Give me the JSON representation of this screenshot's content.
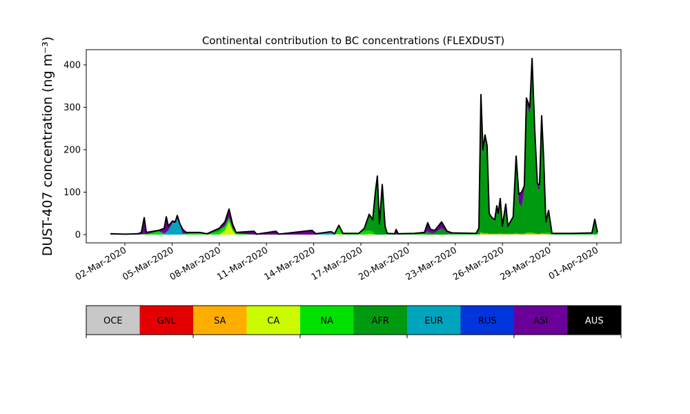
{
  "chart_data": {
    "type": "area",
    "stacked": true,
    "title": "Continental contribution to BC concentrations (FLEXDUST)",
    "ylabel": "DUST-407 concentration (ng m⁻³)",
    "xlabel": "",
    "ylim": [
      -20,
      435
    ],
    "yticks": [
      0,
      100,
      200,
      300,
      400
    ],
    "x_unit": "day of March 2020",
    "xlim": [
      0.5,
      33.5
    ],
    "xticks": [
      {
        "day": 2,
        "label": "02-Mar-2020"
      },
      {
        "day": 5,
        "label": "05-Mar-2020"
      },
      {
        "day": 8,
        "label": "08-Mar-2020"
      },
      {
        "day": 11,
        "label": "11-Mar-2020"
      },
      {
        "day": 14,
        "label": "14-Mar-2020"
      },
      {
        "day": 17,
        "label": "17-Mar-2020"
      },
      {
        "day": 20,
        "label": "20-Mar-2020"
      },
      {
        "day": 23,
        "label": "23-Mar-2020"
      },
      {
        "day": 26,
        "label": "26-Mar-2020"
      },
      {
        "day": 29,
        "label": "29-Mar-2020"
      },
      {
        "day": 32,
        "label": "01-Apr-2020"
      }
    ],
    "legend": [
      {
        "name": "OCE",
        "color": "#c8c8c8",
        "text_color": "#000000"
      },
      {
        "name": "GNL",
        "color": "#e50000",
        "text_color": "#000000"
      },
      {
        "name": "SA",
        "color": "#ffae00",
        "text_color": "#000000"
      },
      {
        "name": "CA",
        "color": "#ccfa00",
        "text_color": "#000000"
      },
      {
        "name": "NA",
        "color": "#00e100",
        "text_color": "#000000"
      },
      {
        "name": "AFR",
        "color": "#009a10",
        "text_color": "#000000"
      },
      {
        "name": "EUR",
        "color": "#00a5bd",
        "text_color": "#000000"
      },
      {
        "name": "RUS",
        "color": "#0035dd",
        "text_color": "#000000"
      },
      {
        "name": "ASI",
        "color": "#6a0098",
        "text_color": "#000000"
      },
      {
        "name": "AUS",
        "color": "#000000",
        "text_color": "#ffffff"
      }
    ],
    "legend_placement": "bottom colorbar",
    "columns": [
      "day",
      "SA",
      "CA",
      "NA",
      "AFR",
      "EUR",
      "RUS",
      "ASI"
    ],
    "points": [
      [
        1.08,
        0,
        0,
        0,
        0,
        0,
        1,
        1
      ],
      [
        2.0,
        0,
        0,
        0,
        0,
        0,
        0,
        1
      ],
      [
        2.83,
        0,
        0,
        0,
        0,
        0,
        0,
        2
      ],
      [
        3.05,
        0,
        0,
        1,
        0,
        0,
        0,
        4
      ],
      [
        3.23,
        0,
        0,
        2,
        0,
        0,
        0,
        38
      ],
      [
        3.36,
        0,
        0,
        1,
        0,
        0,
        0,
        4
      ],
      [
        4.15,
        0,
        0,
        8,
        0,
        0,
        0,
        2
      ],
      [
        4.5,
        0,
        0,
        0,
        0,
        3,
        0,
        12
      ],
      [
        4.63,
        0,
        0,
        0,
        0,
        6,
        0,
        36
      ],
      [
        4.76,
        0,
        0,
        0,
        0,
        10,
        0,
        10
      ],
      [
        5.03,
        0,
        0,
        0,
        0,
        28,
        0,
        4
      ],
      [
        5.2,
        0,
        0,
        0,
        0,
        27,
        0,
        3
      ],
      [
        5.33,
        0,
        0,
        0,
        0,
        42,
        0,
        3
      ],
      [
        5.5,
        0,
        0,
        0,
        0,
        22,
        0,
        3
      ],
      [
        5.68,
        0,
        0,
        0,
        0,
        2,
        0,
        10
      ],
      [
        5.9,
        0,
        0,
        2,
        0,
        0,
        0,
        3
      ],
      [
        6.78,
        0,
        0,
        3,
        0,
        2,
        0,
        0
      ],
      [
        7.22,
        0,
        0,
        0,
        0,
        0,
        0,
        2
      ],
      [
        8.0,
        0,
        0,
        8,
        5,
        0,
        0,
        2
      ],
      [
        8.36,
        0,
        10,
        10,
        0,
        0,
        0,
        10
      ],
      [
        8.62,
        0,
        30,
        10,
        0,
        0,
        0,
        20
      ],
      [
        8.84,
        0,
        10,
        5,
        0,
        0,
        0,
        10
      ],
      [
        9.06,
        0,
        0,
        3,
        0,
        0,
        0,
        2
      ],
      [
        10.2,
        0,
        0,
        0,
        0,
        0,
        0,
        8
      ],
      [
        10.38,
        0,
        0,
        0,
        0,
        0,
        0,
        1
      ],
      [
        11.6,
        0,
        0,
        0,
        0,
        0,
        0,
        8
      ],
      [
        11.78,
        0,
        0,
        0,
        0,
        0,
        0,
        1
      ],
      [
        13.89,
        0,
        0,
        0,
        0,
        0,
        0,
        10
      ],
      [
        14.15,
        0,
        0,
        0,
        0,
        0,
        0,
        2
      ],
      [
        15.11,
        0,
        0,
        0,
        0,
        7,
        0,
        0
      ],
      [
        15.33,
        0,
        0,
        1,
        0,
        0,
        0,
        1
      ],
      [
        15.6,
        0,
        2,
        20,
        0,
        0,
        0,
        0
      ],
      [
        15.86,
        0,
        0,
        3,
        0,
        0,
        0,
        0
      ],
      [
        16.87,
        0,
        0,
        3,
        0,
        0,
        0,
        0
      ],
      [
        17.22,
        0,
        0,
        8,
        7,
        0,
        0,
        0
      ],
      [
        17.53,
        0,
        2,
        8,
        38,
        0,
        0,
        0
      ],
      [
        17.75,
        0,
        0,
        7,
        28,
        0,
        0,
        0
      ],
      [
        17.92,
        0,
        0,
        0,
        95,
        0,
        0,
        5
      ],
      [
        18.05,
        0,
        0,
        0,
        130,
        0,
        0,
        8
      ],
      [
        18.18,
        0,
        0,
        0,
        22,
        0,
        0,
        3
      ],
      [
        18.36,
        0,
        0,
        0,
        112,
        0,
        0,
        6
      ],
      [
        18.54,
        0,
        0,
        0,
        18,
        0,
        0,
        2
      ],
      [
        18.67,
        0,
        0,
        1,
        1,
        0,
        0,
        1
      ],
      [
        19.15,
        0,
        0,
        0,
        1,
        0,
        0,
        1
      ],
      [
        19.24,
        0,
        0,
        0,
        0,
        0,
        0,
        12
      ],
      [
        19.37,
        0,
        0,
        0,
        1,
        0,
        0,
        1
      ],
      [
        20.38,
        0,
        0,
        1,
        1,
        0,
        0,
        1
      ],
      [
        21.04,
        0,
        0,
        1,
        2,
        0,
        0,
        2
      ],
      [
        21.25,
        0,
        0,
        0,
        8,
        0,
        0,
        20
      ],
      [
        21.43,
        0,
        0,
        0,
        4,
        0,
        0,
        8
      ],
      [
        21.7,
        0,
        0,
        0,
        4,
        0,
        0,
        6
      ],
      [
        22.13,
        0,
        0,
        0,
        15,
        0,
        0,
        15
      ],
      [
        22.48,
        0,
        0,
        0,
        5,
        0,
        0,
        3
      ],
      [
        22.79,
        0,
        0,
        1,
        2,
        0,
        0,
        1
      ],
      [
        24.32,
        0,
        0,
        1,
        1,
        0,
        0,
        1
      ],
      [
        24.5,
        0,
        0,
        0,
        15,
        0,
        0,
        0
      ],
      [
        24.63,
        4,
        0,
        2,
        309,
        0,
        0,
        15
      ],
      [
        24.76,
        2,
        0,
        2,
        186,
        0,
        0,
        10
      ],
      [
        24.89,
        2,
        0,
        2,
        219,
        0,
        0,
        12
      ],
      [
        25.02,
        2,
        0,
        2,
        196,
        0,
        0,
        10
      ],
      [
        25.16,
        1,
        0,
        1,
        46,
        0,
        0,
        2
      ],
      [
        25.33,
        1,
        0,
        1,
        36,
        0,
        0,
        2
      ],
      [
        25.51,
        1,
        0,
        1,
        31,
        0,
        0,
        2
      ],
      [
        25.64,
        1,
        0,
        1,
        62,
        0,
        0,
        4
      ],
      [
        25.73,
        1,
        0,
        1,
        45,
        0,
        0,
        3
      ],
      [
        25.86,
        1,
        0,
        3,
        76,
        0,
        0,
        5
      ],
      [
        25.99,
        1,
        0,
        1,
        17,
        0,
        0,
        1
      ],
      [
        26.21,
        1,
        0,
        1,
        66,
        0,
        0,
        4
      ],
      [
        26.34,
        1,
        0,
        1,
        17,
        0,
        0,
        1
      ],
      [
        26.68,
        1,
        0,
        1,
        38,
        0,
        0,
        2
      ],
      [
        26.87,
        2,
        0,
        2,
        171,
        0,
        0,
        10
      ],
      [
        27.04,
        1,
        0,
        1,
        73,
        0,
        0,
        20
      ],
      [
        27.22,
        1,
        0,
        1,
        63,
        0,
        0,
        35
      ],
      [
        27.39,
        1,
        0,
        1,
        103,
        0,
        0,
        10
      ],
      [
        27.52,
        3,
        0,
        2,
        302,
        0,
        0,
        15
      ],
      [
        27.74,
        3,
        0,
        2,
        280,
        0,
        0,
        15
      ],
      [
        27.88,
        3,
        0,
        2,
        385,
        0,
        0,
        25
      ],
      [
        28.05,
        2,
        0,
        2,
        233,
        0,
        0,
        13
      ],
      [
        28.22,
        1,
        0,
        1,
        108,
        0,
        0,
        10
      ],
      [
        28.36,
        1,
        0,
        1,
        103,
        0,
        0,
        13
      ],
      [
        28.49,
        2,
        0,
        2,
        263,
        0,
        0,
        13
      ],
      [
        28.62,
        2,
        0,
        1,
        167,
        0,
        0,
        10
      ],
      [
        28.76,
        1,
        0,
        3,
        25,
        0,
        0,
        1
      ],
      [
        28.93,
        1,
        0,
        4,
        50,
        0,
        0,
        2
      ],
      [
        29.15,
        0,
        0,
        1,
        1,
        0,
        0,
        1
      ],
      [
        30.46,
        0,
        0,
        1,
        1,
        0,
        0,
        1
      ],
      [
        31.69,
        0,
        0,
        1,
        2,
        0,
        0,
        1
      ],
      [
        31.87,
        0,
        0,
        1,
        29,
        0,
        0,
        6
      ],
      [
        32.04,
        0,
        0,
        1,
        3,
        0,
        0,
        1
      ]
    ]
  }
}
